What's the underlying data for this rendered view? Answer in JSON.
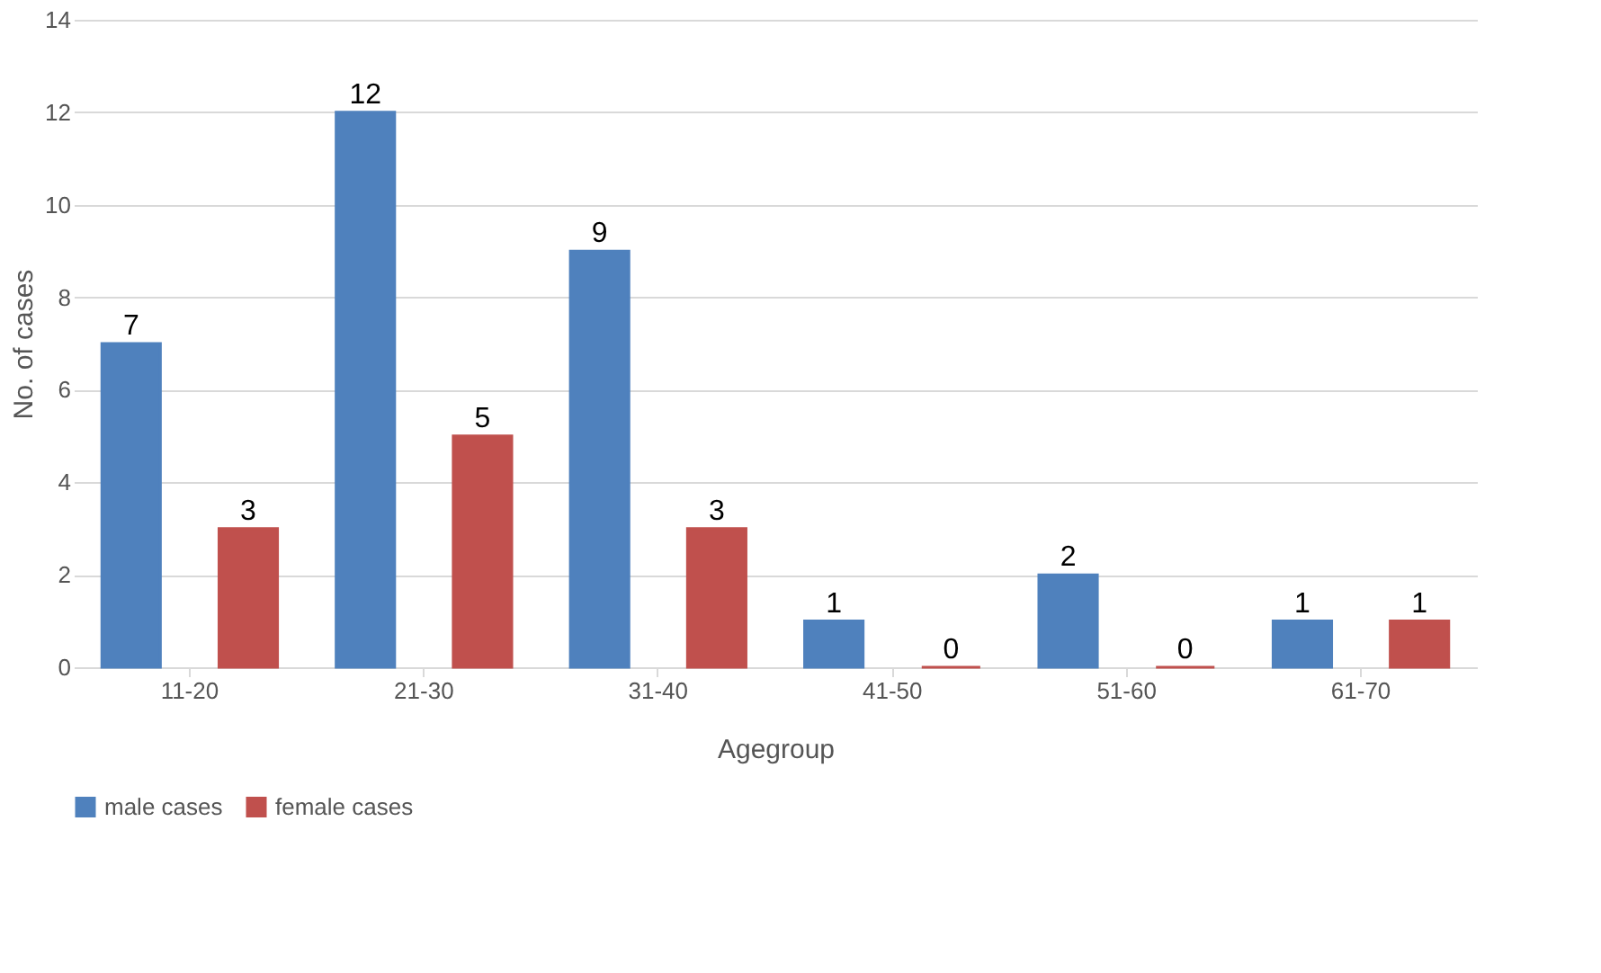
{
  "chart_data": {
    "type": "bar",
    "xlabel": "Agegroup",
    "ylabel": "No. of cases",
    "categories": [
      "11-20",
      "21-30",
      "31-40",
      "41-50",
      "51-60",
      "61-70"
    ],
    "series": [
      {
        "name": "male cases",
        "color": "#4f81bd",
        "values": [
          7,
          12,
          9,
          1,
          2,
          1
        ]
      },
      {
        "name": "female cases",
        "color": "#c0504d",
        "values": [
          3,
          5,
          3,
          0,
          0,
          1
        ]
      }
    ],
    "ylim": [
      0,
      14
    ],
    "yticks": [
      0,
      2,
      4,
      6,
      8,
      10,
      12,
      14
    ],
    "grid": "y",
    "legend": "bottom",
    "data_labels": true
  }
}
